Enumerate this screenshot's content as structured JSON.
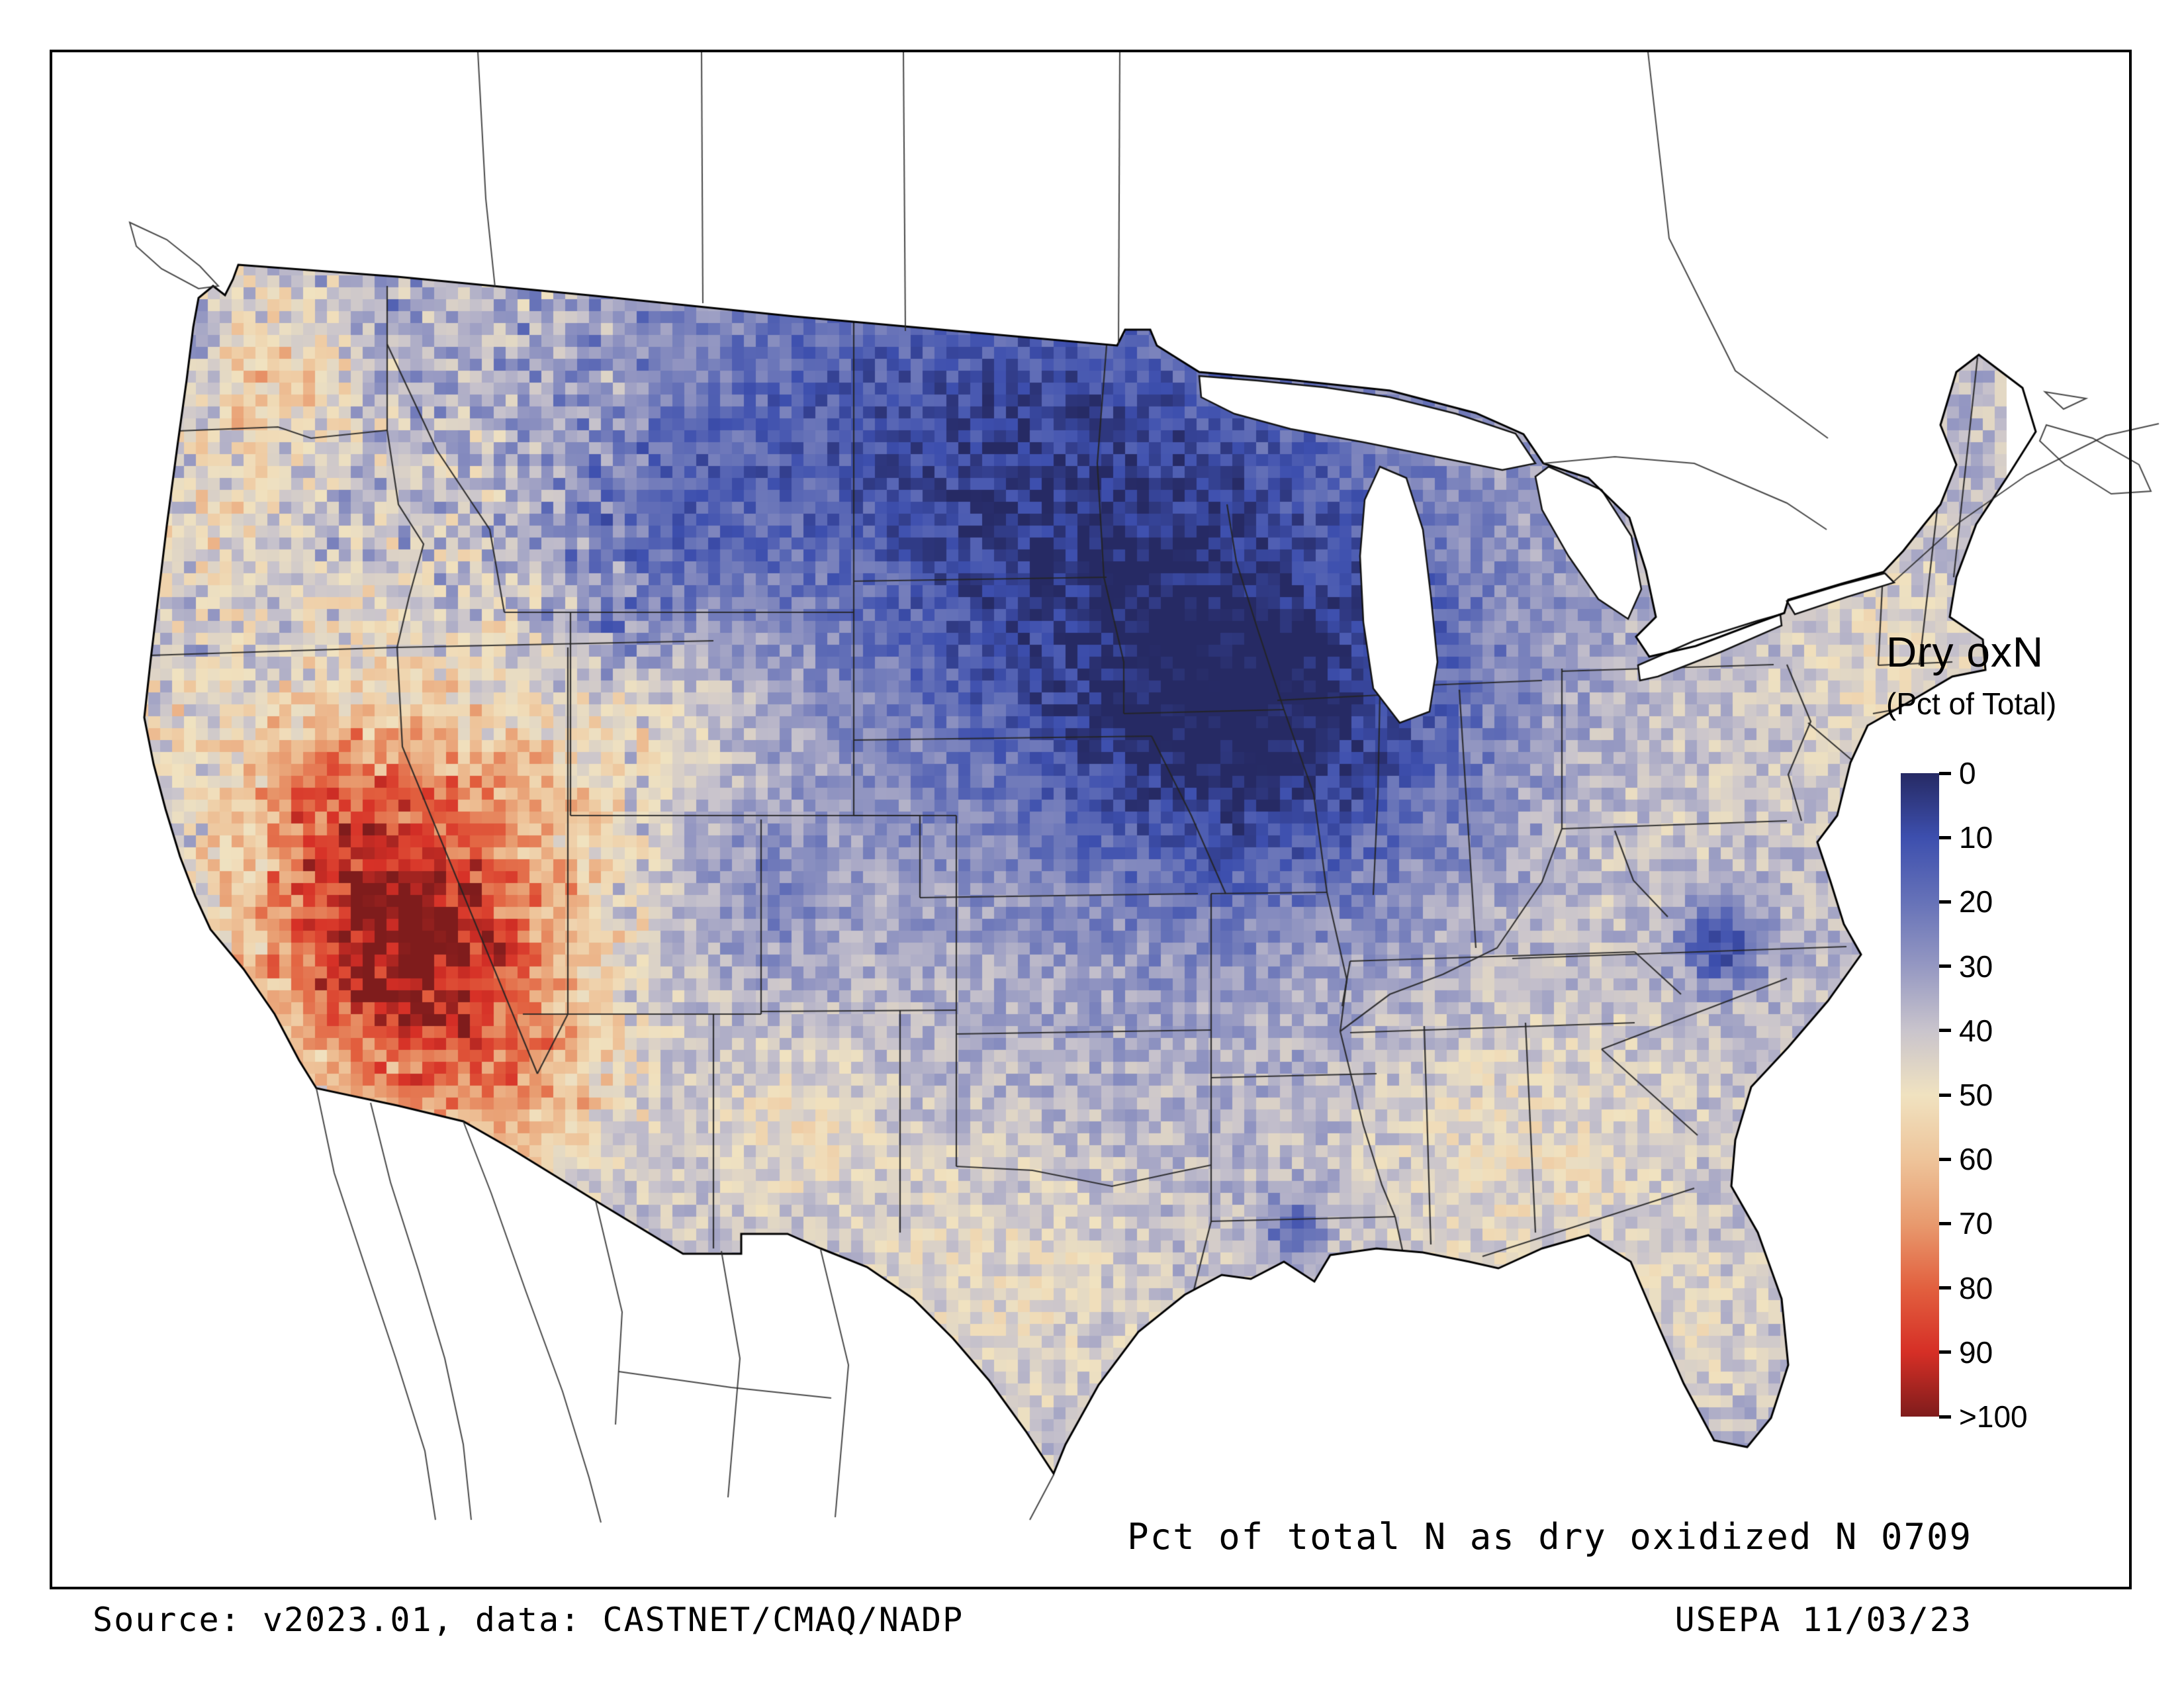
{
  "figure": {
    "map_caption": "Pct of total N as dry oxidized N 0709",
    "source": "Source: v2023.01, data: CASTNET/CMAQ/NADP",
    "agency_date": "USEPA 11/03/23"
  },
  "legend": {
    "title": "Dry oxN",
    "subtitle": "(Pct of Total)",
    "ticks": [
      "0",
      "10",
      "20",
      "30",
      "40",
      "50",
      "60",
      "70",
      "80",
      "90",
      ">100"
    ],
    "colormap": {
      "values": [
        0,
        10,
        20,
        30,
        40,
        50,
        60,
        70,
        80,
        90,
        100
      ],
      "colors": [
        "#262a64",
        "#3d4fae",
        "#6672b8",
        "#9598c2",
        "#c9c4cc",
        "#f0e2c0",
        "#eec49a",
        "#e89a6e",
        "#e2603f",
        "#d62f26",
        "#7f1c1c"
      ]
    }
  },
  "chart_data": {
    "type": "heatmap",
    "title": "Dry oxN (Pct of Total)",
    "subtitle": "Pct of total N as dry oxidized N 0709",
    "units": "percent of total nitrogen deposition as dry oxidized N",
    "region": "Continental United States",
    "scale_ticks": [
      0,
      10,
      20,
      30,
      40,
      50,
      60,
      70,
      80,
      90,
      100
    ],
    "scale_orientation": "vertical, 0 at top (blue) to >100 at bottom (dark red)",
    "notable_features": [
      {
        "region": "Nevada / Arizona / southeastern California",
        "approx_value": "70 to >100 (deep red maximum)"
      },
      {
        "region": "Upper Midwest: Minnesota, Iowa, Dakotas, Wisconsin",
        "approx_value": "5-20 (deep blue minimum)"
      },
      {
        "region": "Eastern North Carolina coastal spot",
        "approx_value": "10-20 (local blue minimum)"
      },
      {
        "region": "Southern Louisiana spot",
        "approx_value": "10-20 (local blue minimum)"
      },
      {
        "region": "Pacific Northwest interior (WA/OR)",
        "approx_value": "50-70 (warm patches)"
      },
      {
        "region": "Texas, Southeast, New England coast",
        "approx_value": "45-55 (cream)"
      },
      {
        "region": "Most of eastern and central US",
        "approx_value": "30-45 (pale lavender)"
      }
    ]
  }
}
